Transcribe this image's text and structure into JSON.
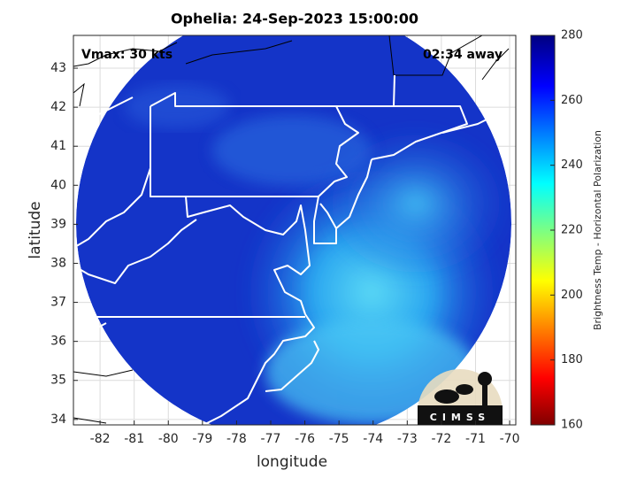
{
  "chart_data": {
    "type": "map",
    "title": "Ophelia: 24-Sep-2023 15:00:00",
    "annotations": [
      "Vmax: 30 kts",
      "02:34 away"
    ],
    "xlabel": "longitude",
    "ylabel": "latitude",
    "xlim": [
      -82.78,
      -69.82
    ],
    "ylim": [
      33.86,
      43.84
    ],
    "xticks": [
      -82,
      -81,
      -80,
      -79,
      -78,
      -77,
      -76,
      -75,
      -74,
      -73,
      -72,
      -71,
      -70
    ],
    "yticks": [
      34,
      35,
      36,
      37,
      38,
      39,
      40,
      41,
      42,
      43
    ],
    "grid": true,
    "colorbar": {
      "label": "Brightness Temp - Horizontal Polarization",
      "lim": [
        160,
        280
      ],
      "ticks": [
        160,
        180,
        200,
        220,
        240,
        260,
        280
      ],
      "colormap": "jet"
    },
    "logo": "CIMSS"
  }
}
